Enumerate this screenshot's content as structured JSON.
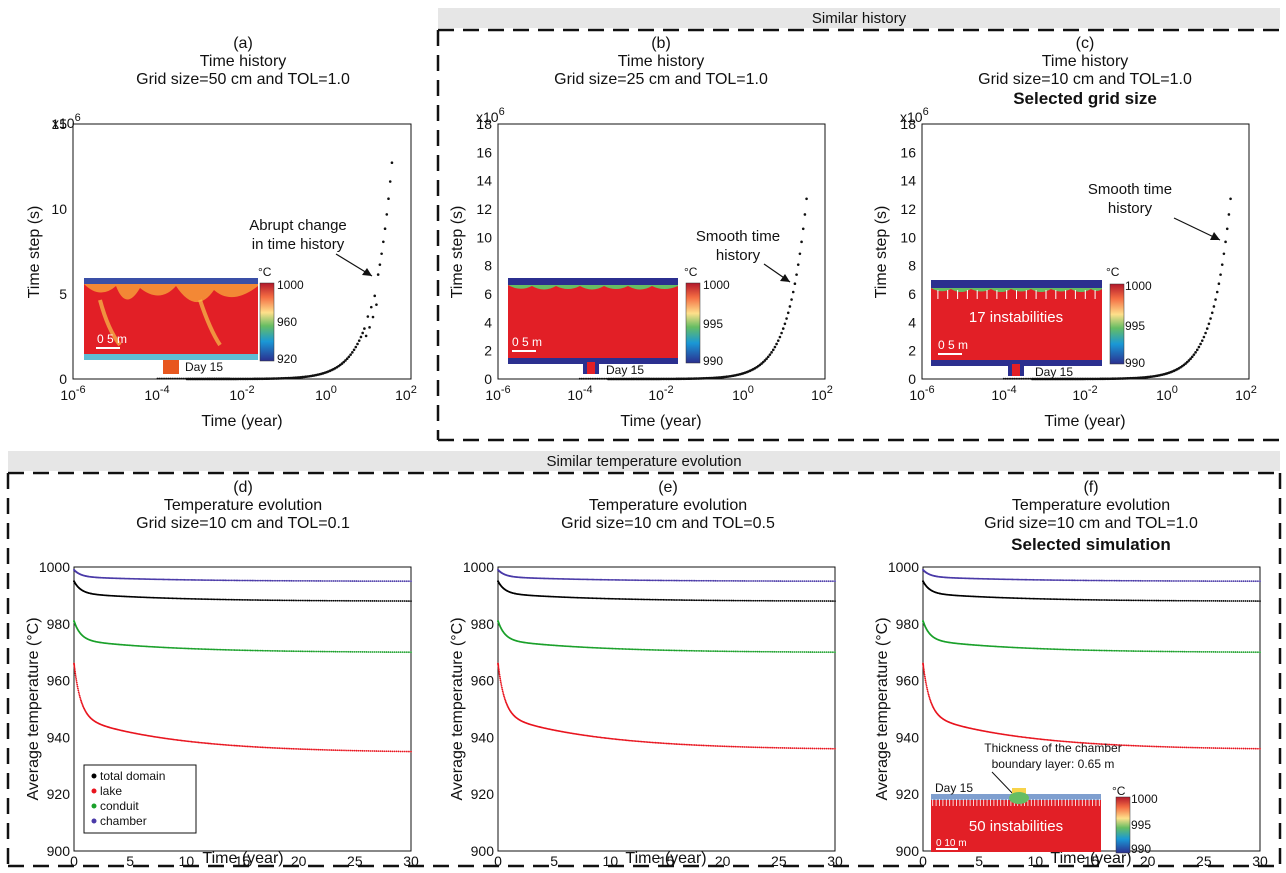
{
  "sections": {
    "top_band": "Similar history",
    "bottom_band": "Similar temperature evolution"
  },
  "chart_data": [
    {
      "type": "scatter",
      "panel": "(a)",
      "title": "Time history",
      "subtitle": "Grid size=50 cm and TOL=1.0",
      "xlabel": "Time (year)",
      "ylabel": "Time step (s)",
      "xscale": "log",
      "xlim": [
        1e-06,
        100
      ],
      "ylim": [
        0,
        15
      ],
      "y_multiplier": "x10",
      "y_multiplier_exp": "6",
      "xticks": [
        "10",
        "10",
        "10",
        "10",
        "10"
      ],
      "xtick_exps": [
        "-6",
        "-4",
        "-2",
        "0",
        "2"
      ],
      "yticks": [
        "0",
        "5",
        "10",
        "15"
      ],
      "annotation": [
        "Abrupt change",
        "in time history"
      ],
      "inset": {
        "colorbar_unit": "°C",
        "colorbar_ticks": [
          "1000",
          "960",
          "920"
        ],
        "scale": "0  5 m",
        "label": "Day 15",
        "text": ""
      },
      "series": [
        {
          "values": "time step grows smoothly with time, reaching about 13.5 x10^6 s near 30 years, with an abrupt jump near 10 years"
        }
      ]
    },
    {
      "type": "scatter",
      "panel": "(b)",
      "title": "Time history",
      "subtitle": "Grid size=25 cm and TOL=1.0",
      "xlabel": "Time (year)",
      "ylabel": "Time step (s)",
      "xscale": "log",
      "xlim": [
        1e-06,
        100
      ],
      "ylim": [
        0,
        18
      ],
      "y_multiplier": "x10",
      "y_multiplier_exp": "6",
      "xticks": [
        "10",
        "10",
        "10",
        "10",
        "10"
      ],
      "xtick_exps": [
        "-6",
        "-4",
        "-2",
        "0",
        "2"
      ],
      "yticks": [
        "0",
        "2",
        "4",
        "6",
        "8",
        "10",
        "12",
        "14",
        "16",
        "18"
      ],
      "annotation": [
        "Smooth time",
        "history"
      ],
      "inset": {
        "colorbar_unit": "°C",
        "colorbar_ticks": [
          "1000",
          "995",
          "990"
        ],
        "scale": "0  5 m",
        "label": "Day 15",
        "text": ""
      }
    },
    {
      "type": "scatter",
      "panel": "(c)",
      "title": "Time history",
      "subtitle": "Grid size=10 cm and TOL=1.0",
      "highlight": "Selected grid size",
      "xlabel": "Time (year)",
      "ylabel": "Time step (s)",
      "xscale": "log",
      "xlim": [
        1e-06,
        100
      ],
      "ylim": [
        0,
        18
      ],
      "y_multiplier": "x10",
      "y_multiplier_exp": "6",
      "xticks": [
        "10",
        "10",
        "10",
        "10",
        "10"
      ],
      "xtick_exps": [
        "-6",
        "-4",
        "-2",
        "0",
        "2"
      ],
      "yticks": [
        "0",
        "2",
        "4",
        "6",
        "8",
        "10",
        "12",
        "14",
        "16",
        "18"
      ],
      "annotation": [
        "Smooth time",
        "history"
      ],
      "inset": {
        "colorbar_unit": "°C",
        "colorbar_ticks": [
          "1000",
          "995",
          "990"
        ],
        "scale": "0  5 m",
        "label": "Day 15",
        "text": "17 instabilities"
      }
    },
    {
      "type": "scatter",
      "panel": "(d)",
      "title": "Temperature evolution",
      "subtitle": "Grid size=10 cm and TOL=0.1",
      "xlabel": "Time (year)",
      "ylabel": "Average temperature (°C)",
      "xlim": [
        0,
        30
      ],
      "ylim": [
        900,
        1000
      ],
      "xticks": [
        "0",
        "5",
        "10",
        "15",
        "20",
        "25",
        "30"
      ],
      "yticks": [
        "900",
        "920",
        "940",
        "960",
        "980",
        "1000"
      ],
      "legend": [
        "total domain",
        "lake",
        "conduit",
        "chamber"
      ],
      "legend_position": "lower-left",
      "series": [
        {
          "name": "total domain",
          "color": "#000000",
          "start": 995,
          "end": 988
        },
        {
          "name": "lake",
          "color": "#e8141e",
          "start": 966,
          "end": 935
        },
        {
          "name": "conduit",
          "color": "#1aa02a",
          "start": 981,
          "end": 970
        },
        {
          "name": "chamber",
          "color": "#4a3aa8",
          "start": 999,
          "end": 995
        }
      ]
    },
    {
      "type": "scatter",
      "panel": "(e)",
      "title": "Temperature evolution",
      "subtitle": "Grid size=10 cm and TOL=0.5",
      "xlabel": "Time (year)",
      "ylabel": "Average temperature (°C)",
      "xlim": [
        0,
        30
      ],
      "ylim": [
        900,
        1000
      ],
      "xticks": [
        "0",
        "5",
        "10",
        "15",
        "20",
        "25",
        "30"
      ],
      "yticks": [
        "900",
        "920",
        "940",
        "960",
        "980",
        "1000"
      ],
      "series": [
        {
          "name": "total domain",
          "color": "#000000",
          "start": 995,
          "end": 988
        },
        {
          "name": "lake",
          "color": "#e8141e",
          "start": 966,
          "end": 936
        },
        {
          "name": "conduit",
          "color": "#1aa02a",
          "start": 981,
          "end": 970
        },
        {
          "name": "chamber",
          "color": "#4a3aa8",
          "start": 999,
          "end": 995
        }
      ]
    },
    {
      "type": "scatter",
      "panel": "(f)",
      "title": "Temperature evolution",
      "subtitle": "Grid size=10 cm and TOL=1.0",
      "highlight": "Selected simulation",
      "xlabel": "Time (year)",
      "ylabel": "Average temperature (°C)",
      "xlim": [
        0,
        30
      ],
      "ylim": [
        900,
        1000
      ],
      "xticks": [
        "0",
        "5",
        "10",
        "15",
        "20",
        "25",
        "30"
      ],
      "yticks": [
        "900",
        "920",
        "940",
        "960",
        "980",
        "1000"
      ],
      "annotation": [
        "Thickness of the chamber",
        "boundary layer: 0.65 m"
      ],
      "inset": {
        "colorbar_unit": "°C",
        "colorbar_ticks": [
          "1000",
          "995",
          "990"
        ],
        "scale": "0   10 m",
        "label": "Day 15",
        "text": "50 instabilities"
      },
      "series": [
        {
          "name": "total domain",
          "color": "#000000",
          "start": 995,
          "end": 988
        },
        {
          "name": "lake",
          "color": "#e8141e",
          "start": 966,
          "end": 936
        },
        {
          "name": "conduit",
          "color": "#1aa02a",
          "start": 981,
          "end": 970
        },
        {
          "name": "chamber",
          "color": "#4a3aa8",
          "start": 999,
          "end": 995
        }
      ]
    }
  ],
  "colors": {
    "lake": "#e8141e",
    "conduit": "#1aa02a",
    "chamber": "#4a3aa8",
    "total_domain": "#000000",
    "band": "#e6e6e6"
  }
}
